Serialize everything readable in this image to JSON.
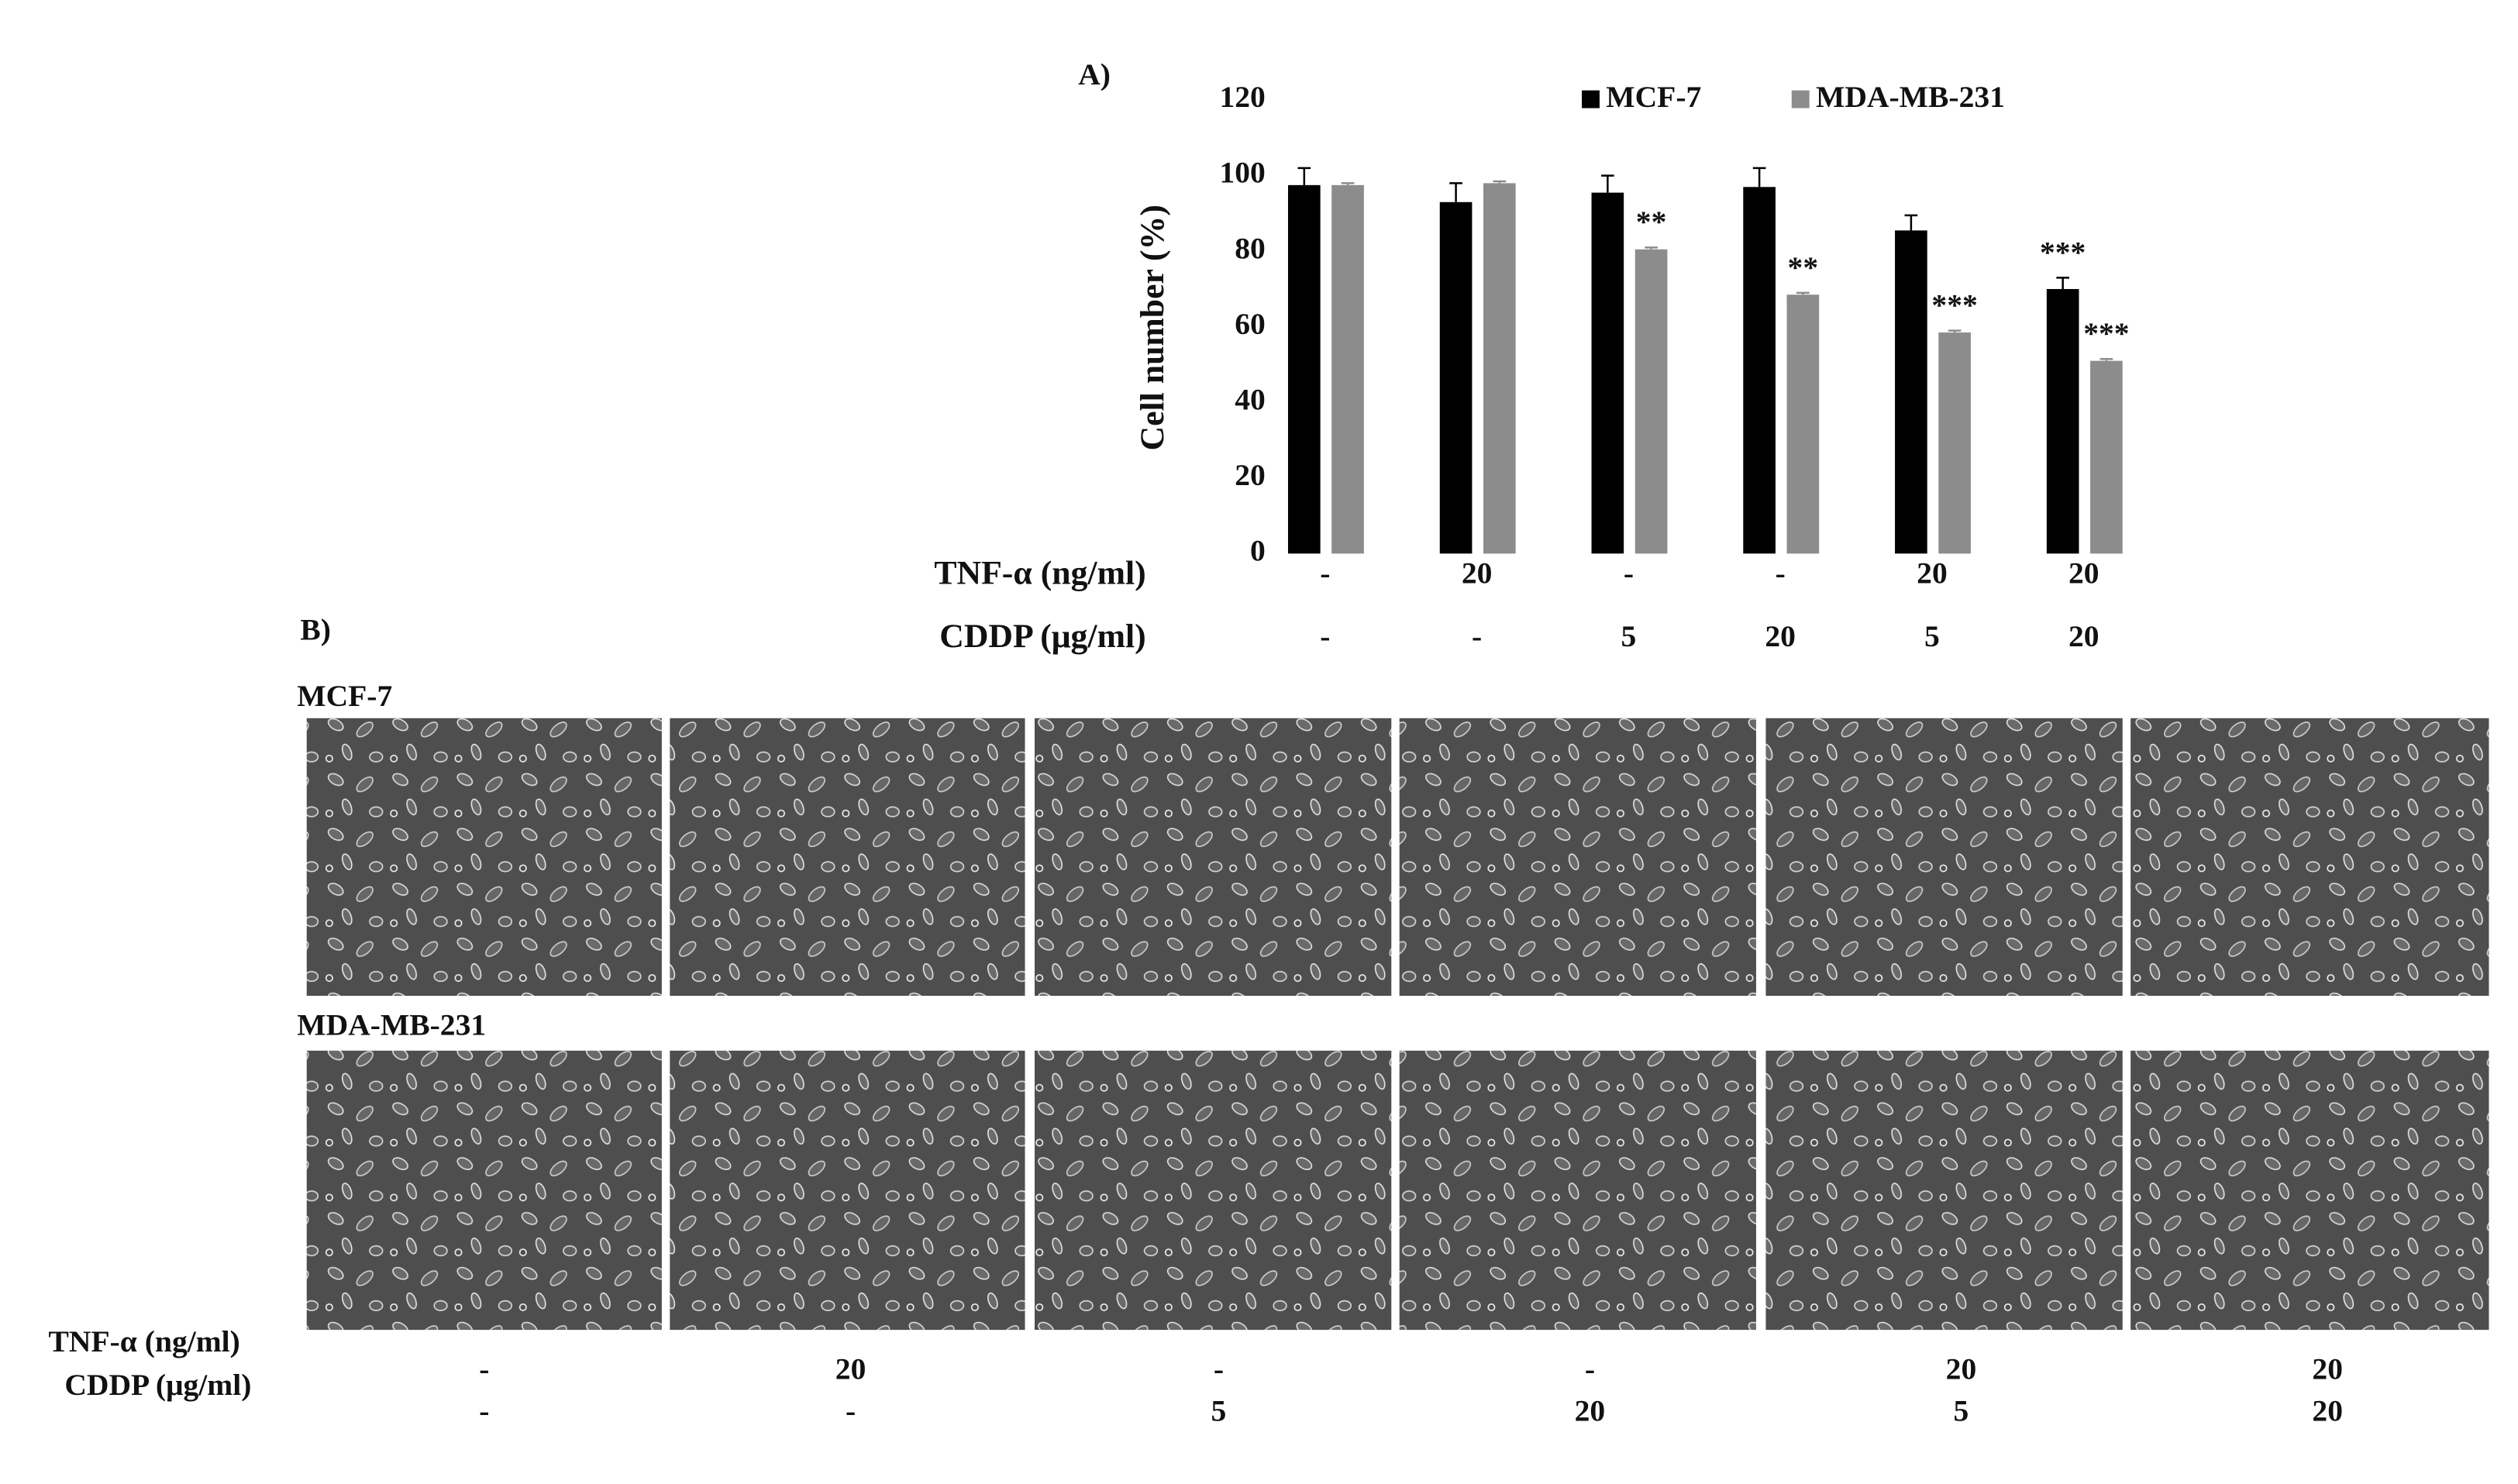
{
  "chart_data": {
    "type": "bar",
    "title": "A)",
    "ylabel": "Cell number (%)",
    "ylim": [
      0,
      120
    ],
    "yticks": [
      0,
      20,
      40,
      60,
      80,
      100,
      120
    ],
    "grid": false,
    "legend": "top",
    "conditions": [
      {
        "label": "TNF-α (ng/ml)",
        "values": [
          "-",
          "20",
          "-",
          "-",
          "20",
          "20"
        ]
      },
      {
        "label": "CDDP (μg/ml)",
        "values": [
          "-",
          "-",
          "5",
          "20",
          "5",
          "20"
        ]
      }
    ],
    "series": [
      {
        "name": "MCF-7",
        "color": "#000000",
        "values": [
          97.5,
          93,
          95.5,
          97,
          85.5,
          70
        ],
        "errors": [
          4.5,
          5,
          4.5,
          5,
          4,
          3
        ],
        "significance": [
          null,
          null,
          null,
          null,
          null,
          "***"
        ]
      },
      {
        "name": "MDA-MB-231",
        "color": "#8c8c8c",
        "values": [
          97.5,
          98,
          80.5,
          68.5,
          58.5,
          51
        ],
        "errors": [
          0.5,
          0.5,
          0.5,
          0.5,
          0.5,
          0.5
        ],
        "significance": [
          null,
          null,
          "**",
          "**",
          "***",
          "***"
        ]
      }
    ]
  },
  "panel_b": {
    "title": "B)",
    "rows": [
      "MCF-7",
      "MDA-MB-231"
    ]
  }
}
